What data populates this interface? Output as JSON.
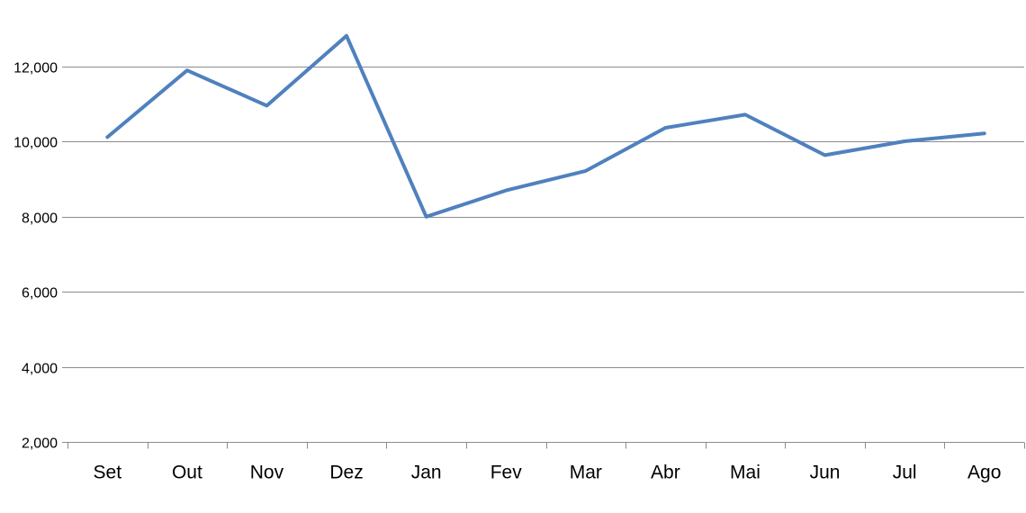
{
  "chart_data": {
    "type": "line",
    "title": "",
    "xlabel": "",
    "ylabel": "",
    "categories": [
      "Set",
      "Out",
      "Nov",
      "Dez",
      "Jan",
      "Fev",
      "Mar",
      "Abr",
      "Mai",
      "Jun",
      "Jul",
      "Ago"
    ],
    "series": [
      {
        "values": [
          10120,
          11900,
          10960,
          12820,
          8000,
          8700,
          9220,
          10370,
          10720,
          9640,
          10010,
          10220
        ],
        "color": "#4f81bd"
      }
    ],
    "ylim": [
      2000,
      13000
    ],
    "yticks": [
      2000,
      4000,
      6000,
      8000,
      10000,
      12000
    ],
    "ytick_labels": [
      "2,000",
      "4,000",
      "6,000",
      "8,000",
      "10,000",
      "12,000"
    ],
    "grid": "horizontal",
    "legend": "none",
    "colors": {
      "gridline": "#8c8c8c",
      "text": "#000000"
    }
  }
}
